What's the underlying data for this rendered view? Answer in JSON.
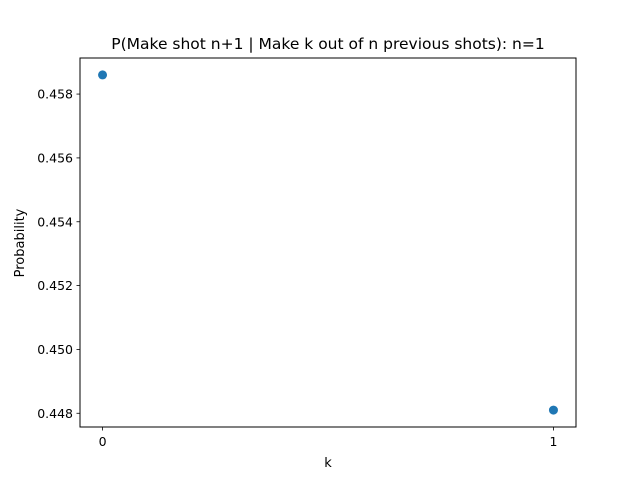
{
  "chart_data": {
    "type": "scatter",
    "title": "P(Make shot n+1 | Make k out of n previous shots): n=1",
    "xlabel": "k",
    "ylabel": "Probability",
    "x": [
      0,
      1
    ],
    "y": [
      0.4586,
      0.4481
    ],
    "x_ticks": [
      "0",
      "1"
    ],
    "y_ticks": [
      "0.448",
      "0.450",
      "0.452",
      "0.454",
      "0.456",
      "0.458"
    ],
    "xlim": [
      -0.05,
      1.05
    ],
    "ylim": [
      0.44757,
      0.45913
    ],
    "grid": false,
    "marker_color": "#1f77b4"
  }
}
